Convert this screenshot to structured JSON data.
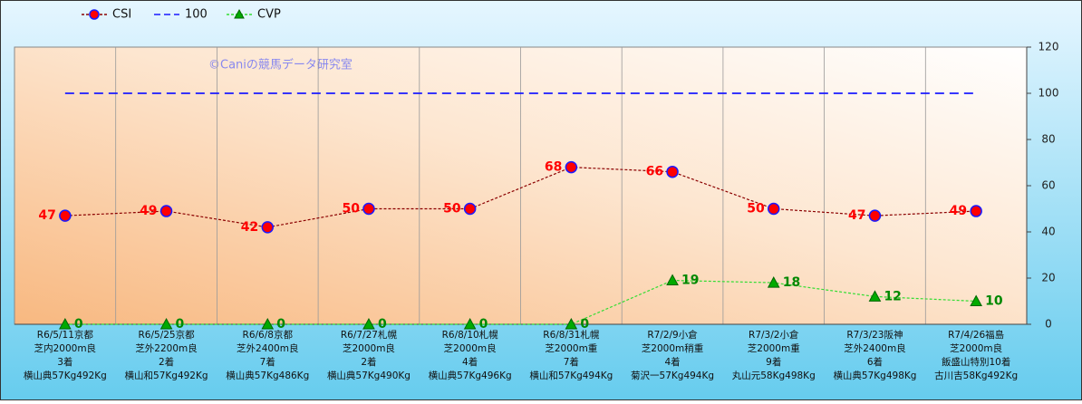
{
  "chart_data": {
    "type": "line",
    "watermark": "©Caniの競馬データ研究室",
    "categories": [
      [
        "R6/5/11京都",
        "芝内2000m良",
        "3着",
        "横山典57Kg492Kg"
      ],
      [
        "R6/5/25京都",
        "芝外2200m良",
        "2着",
        "横山和57Kg492Kg"
      ],
      [
        "R6/6/8京都",
        "芝外2400m良",
        "7着",
        "横山典57Kg486Kg"
      ],
      [
        "R6/7/27札幌",
        "芝2000m良",
        "2着",
        "横山典57Kg490Kg"
      ],
      [
        "R6/8/10札幌",
        "芝2000m良",
        "4着",
        "横山典57Kg496Kg"
      ],
      [
        "R6/8/31札幌",
        "芝2000m重",
        "7着",
        "横山和57Kg494Kg"
      ],
      [
        "R7/2/9小倉",
        "芝2000m稍重",
        "4着",
        "菊沢一57Kg494Kg"
      ],
      [
        "R7/3/2小倉",
        "芝2000m重",
        "9着",
        "丸山元58Kg498Kg"
      ],
      [
        "R7/3/23阪神",
        "芝外2400m良",
        "6着",
        "横山典57Kg498Kg"
      ],
      [
        "R7/4/26福島",
        "芝2000m良",
        "飯盛山特別10着",
        "古川吉58Kg492Kg"
      ]
    ],
    "series": [
      {
        "name": "CSI",
        "color": "#8b0000",
        "marker_color": "#ff0000",
        "marker_edge": "#1a1aff",
        "marker": "circle",
        "label_side": "left",
        "label_color": "#ff0000",
        "values": [
          47,
          49,
          42,
          50,
          50,
          68,
          66,
          50,
          47,
          49
        ]
      },
      {
        "name": "100",
        "color": "#1a1aff",
        "marker": "none",
        "values": [
          100,
          100,
          100,
          100,
          100,
          100,
          100,
          100,
          100,
          100
        ]
      },
      {
        "name": "CVP",
        "color": "#33dd33",
        "marker_color": "#00aa00",
        "marker_edge": "#006600",
        "marker": "triangle",
        "label_side": "right",
        "label_color": "#008800",
        "values": [
          0,
          0,
          0,
          0,
          0,
          0,
          19,
          18,
          12,
          10
        ]
      }
    ],
    "ylim": [
      0,
      120
    ],
    "yticks": [
      0,
      20,
      40,
      60,
      80,
      100,
      120
    ],
    "y_axis_side": "right"
  }
}
